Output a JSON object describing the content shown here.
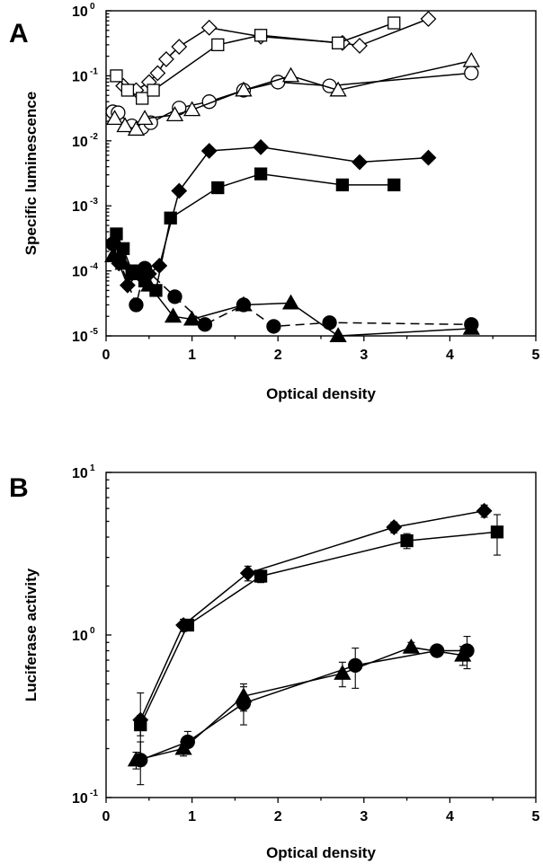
{
  "figure": {
    "panel_a_label": "A",
    "panel_b_label": "B"
  },
  "chart_data": [
    {
      "type": "scatter",
      "panel": "A",
      "title": "",
      "xlabel": "Optical density",
      "ylabel": "Specific luminescence",
      "xlim": [
        0,
        5
      ],
      "ylim": [
        1e-05,
        1
      ],
      "yscale": "log",
      "grid": false,
      "legend": "none",
      "xticks": [
        "0",
        "1",
        "2",
        "3",
        "4",
        "5"
      ],
      "yticks": [
        {
          "value": 1e-05,
          "base": "10",
          "exp": "-5"
        },
        {
          "value": 0.0001,
          "base": "10",
          "exp": "-4"
        },
        {
          "value": 0.001,
          "base": "10",
          "exp": "-3"
        },
        {
          "value": 0.01,
          "base": "10",
          "exp": "-2"
        },
        {
          "value": 0.1,
          "base": "10",
          "exp": "-1"
        },
        {
          "value": 1,
          "base": "10",
          "exp": "0"
        }
      ],
      "series": [
        {
          "marker": "diamond-open",
          "line": "solid",
          "points": [
            [
              0.2,
              0.07
            ],
            [
              0.35,
              0.06
            ],
            [
              0.5,
              0.08
            ],
            [
              0.6,
              0.11
            ],
            [
              0.7,
              0.18
            ],
            [
              0.85,
              0.28
            ],
            [
              1.2,
              0.55
            ],
            [
              1.8,
              0.4
            ],
            [
              2.75,
              0.32
            ],
            [
              2.95,
              0.29
            ],
            [
              3.75,
              0.75
            ]
          ]
        },
        {
          "marker": "square-open",
          "line": "solid",
          "points": [
            [
              0.12,
              0.1
            ],
            [
              0.25,
              0.06
            ],
            [
              0.42,
              0.045
            ],
            [
              0.55,
              0.06
            ],
            [
              1.3,
              0.3
            ],
            [
              1.8,
              0.42
            ],
            [
              2.7,
              0.32
            ],
            [
              3.35,
              0.65
            ]
          ]
        },
        {
          "marker": "circle-open",
          "line": "solid",
          "points": [
            [
              0.08,
              0.028
            ],
            [
              0.14,
              0.027
            ],
            [
              0.3,
              0.017
            ],
            [
              0.42,
              0.016
            ],
            [
              0.52,
              0.019
            ],
            [
              0.85,
              0.032
            ],
            [
              1.2,
              0.04
            ],
            [
              1.6,
              0.06
            ],
            [
              2.0,
              0.08
            ],
            [
              2.6,
              0.07
            ],
            [
              4.25,
              0.11
            ]
          ]
        },
        {
          "marker": "triangle-open",
          "line": "solid",
          "points": [
            [
              0.1,
              0.022
            ],
            [
              0.22,
              0.017
            ],
            [
              0.35,
              0.015
            ],
            [
              0.45,
              0.022
            ],
            [
              0.8,
              0.025
            ],
            [
              1.0,
              0.03
            ],
            [
              1.6,
              0.06
            ],
            [
              2.15,
              0.1
            ],
            [
              2.7,
              0.06
            ],
            [
              4.25,
              0.17
            ]
          ]
        },
        {
          "marker": "diamond-filled",
          "line": "solid",
          "points": [
            [
              0.15,
              0.00013
            ],
            [
              0.25,
              6e-05
            ],
            [
              0.38,
              9e-05
            ],
            [
              0.5,
              9e-05
            ],
            [
              0.62,
              0.00012
            ],
            [
              0.85,
              0.0017
            ],
            [
              1.2,
              0.007
            ],
            [
              1.8,
              0.008
            ],
            [
              2.95,
              0.0047
            ],
            [
              3.75,
              0.0055
            ]
          ]
        },
        {
          "marker": "square-filled",
          "line": "solid",
          "points": [
            [
              0.12,
              0.00037
            ],
            [
              0.2,
              0.00022
            ],
            [
              0.3,
              0.0001
            ],
            [
              0.45,
              7e-05
            ],
            [
              0.58,
              5e-05
            ],
            [
              0.75,
              0.00065
            ],
            [
              1.3,
              0.0019
            ],
            [
              1.8,
              0.0031
            ],
            [
              2.75,
              0.0021
            ],
            [
              3.35,
              0.0021
            ]
          ]
        },
        {
          "marker": "circle-filled",
          "line": "dashed",
          "points": [
            [
              0.08,
              0.00026
            ],
            [
              0.15,
              0.00015
            ],
            [
              0.35,
              3e-05
            ],
            [
              0.45,
              0.00011
            ],
            [
              0.8,
              4e-05
            ],
            [
              1.15,
              1.5e-05
            ],
            [
              1.6,
              3e-05
            ],
            [
              1.95,
              1.4e-05
            ],
            [
              2.6,
              1.6e-05
            ],
            [
              4.25,
              1.5e-05
            ]
          ]
        },
        {
          "marker": "triangle-filled",
          "line": "solid",
          "points": [
            [
              0.08,
              0.00017
            ],
            [
              0.2,
              0.00013
            ],
            [
              0.32,
              9e-05
            ],
            [
              0.5,
              6e-05
            ],
            [
              0.78,
              2e-05
            ],
            [
              1.0,
              1.8e-05
            ],
            [
              1.6,
              3e-05
            ],
            [
              2.15,
              3.2e-05
            ],
            [
              2.7,
              8e-06
            ],
            [
              4.25,
              1.3e-05
            ]
          ]
        }
      ]
    },
    {
      "type": "scatter",
      "panel": "B",
      "title": "",
      "xlabel": "Optical density",
      "ylabel": "Luciferase activity",
      "xlim": [
        0,
        5
      ],
      "ylim": [
        0.1,
        10
      ],
      "yscale": "log",
      "grid": false,
      "legend": "none",
      "xticks": [
        "0",
        "1",
        "2",
        "3",
        "4",
        "5"
      ],
      "yticks": [
        {
          "value": 0.1,
          "base": "10",
          "exp": "-1"
        },
        {
          "value": 1,
          "base": "10",
          "exp": "0"
        },
        {
          "value": 10,
          "base": "10",
          "exp": "1"
        }
      ],
      "series": [
        {
          "marker": "diamond-filled",
          "line": "solid",
          "points": [
            [
              0.4,
              0.3,
              0.14
            ],
            [
              0.9,
              1.15,
              0.1
            ],
            [
              1.65,
              2.4,
              0.25
            ],
            [
              3.35,
              4.6,
              0.35
            ],
            [
              4.4,
              5.8,
              0.5
            ]
          ]
        },
        {
          "marker": "square-filled",
          "line": "solid",
          "points": [
            [
              0.4,
              0.28,
              0.04
            ],
            [
              0.95,
              1.15,
              0.06
            ],
            [
              1.8,
              2.3,
              0.2
            ],
            [
              3.5,
              3.8,
              0.4
            ],
            [
              4.55,
              4.3,
              1.2
            ]
          ]
        },
        {
          "marker": "triangle-filled",
          "line": "solid",
          "points": [
            [
              0.35,
              0.17,
              0.02
            ],
            [
              0.9,
              0.2,
              0.02
            ],
            [
              1.6,
              0.42,
              0.08
            ],
            [
              2.75,
              0.58,
              0.1
            ],
            [
              3.55,
              0.84,
              0.06
            ],
            [
              4.15,
              0.75,
              0.1
            ]
          ]
        },
        {
          "marker": "circle-filled",
          "line": "solid",
          "points": [
            [
              0.4,
              0.17,
              0.05
            ],
            [
              0.95,
              0.22,
              0.035
            ],
            [
              1.6,
              0.38,
              0.1
            ],
            [
              2.9,
              0.65,
              0.18
            ],
            [
              3.85,
              0.8,
              0.05
            ],
            [
              4.2,
              0.8,
              0.18
            ]
          ]
        }
      ]
    }
  ]
}
